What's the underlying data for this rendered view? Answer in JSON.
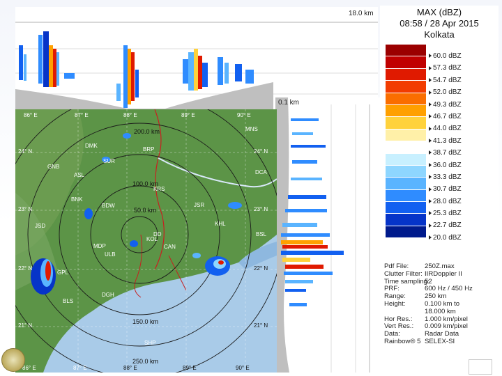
{
  "header": {
    "title_line1": "MAX (dBZ)",
    "title_line2": "08:58 / 28 Apr 2015",
    "title_line3": "Kolkata"
  },
  "cross_sections": {
    "top_height_label": "18.0 km",
    "right_height_label": "0.1 km"
  },
  "legend": {
    "entries": [
      {
        "label": "60.0 dBZ",
        "color": "#9b0000"
      },
      {
        "label": "57.3 dBZ",
        "color": "#c00000"
      },
      {
        "label": "54.7 dBZ",
        "color": "#e01a00"
      },
      {
        "label": "52.0 dBZ",
        "color": "#f23c00"
      },
      {
        "label": "49.3 dBZ",
        "color": "#fa6e00"
      },
      {
        "label": "46.7 dBZ",
        "color": "#ffa000"
      },
      {
        "label": "44.0 dBZ",
        "color": "#ffd23c"
      },
      {
        "label": "41.3 dBZ",
        "color": "#fff0a8"
      },
      {
        "label": "38.7 dBZ",
        "color": "#ffffff"
      },
      {
        "label": "36.0 dBZ",
        "color": "#c8f0ff"
      },
      {
        "label": "33.3 dBZ",
        "color": "#8ed6ff"
      },
      {
        "label": "30.7 dBZ",
        "color": "#5ab4ff"
      },
      {
        "label": "28.0 dBZ",
        "color": "#2f8cff"
      },
      {
        "label": "25.3 dBZ",
        "color": "#1260f0"
      },
      {
        "label": "22.7 dBZ",
        "color": "#0634c8"
      },
      {
        "label": "20.0 dBZ",
        "color": "#001a8c"
      }
    ]
  },
  "info": [
    {
      "key": "Pdf File:",
      "value": "250Z.max"
    },
    {
      "key": "Clutter Filter:",
      "value": "IIRDoppler II"
    },
    {
      "key": "Time sampling:",
      "value": "52"
    },
    {
      "key": "PRF:",
      "value": "600 Hz / 450 Hz"
    },
    {
      "key": "Range:",
      "value": "250 km"
    },
    {
      "key": "Height:",
      "value": "0.100 km to"
    },
    {
      "key": "",
      "value": "18.000 km"
    },
    {
      "key": "Hor Res.:",
      "value": "1.000 km/pixel"
    },
    {
      "key": "Vert Res.:",
      "value": "0.009 km/pixel"
    },
    {
      "key": "Data:",
      "value": "Radar Data"
    },
    {
      "key": "Rainbow® 5",
      "value": "SELEX-SI"
    }
  ],
  "map": {
    "range_rings": [
      {
        "label": "50.0 km"
      },
      {
        "label": "100.0 km"
      },
      {
        "label": "150.0 km"
      },
      {
        "label": "200.0 km"
      },
      {
        "label": "250.0 km"
      }
    ],
    "lon_labels_top": [
      "86° E",
      "87° E",
      "88° E",
      "89° E",
      "90° E"
    ],
    "lon_labels_bottom": [
      "86° E",
      "87° E",
      "88° E",
      "89° E",
      "90° E"
    ],
    "lat_labels_left": [
      "24° N",
      "23° N",
      "22° N",
      "21° N"
    ],
    "lat_labels_right": [
      "24° N",
      "23° N",
      "22° N",
      "21° N"
    ],
    "stations": [
      {
        "name": "MNS"
      },
      {
        "name": "DMK"
      },
      {
        "name": "BRP"
      },
      {
        "name": "SUR"
      },
      {
        "name": "DCA"
      },
      {
        "name": "GNB"
      },
      {
        "name": "ASL"
      },
      {
        "name": "KRS"
      },
      {
        "name": "BNK"
      },
      {
        "name": "BDW"
      },
      {
        "name": "JSR"
      },
      {
        "name": "KHL"
      },
      {
        "name": "JSD"
      },
      {
        "name": "BSL"
      },
      {
        "name": "DD"
      },
      {
        "name": "KOL"
      },
      {
        "name": "MDP"
      },
      {
        "name": "CAN"
      },
      {
        "name": "ULB"
      },
      {
        "name": "BLS"
      },
      {
        "name": "DGH"
      },
      {
        "name": "SHP"
      },
      {
        "name": "GPL"
      }
    ]
  }
}
